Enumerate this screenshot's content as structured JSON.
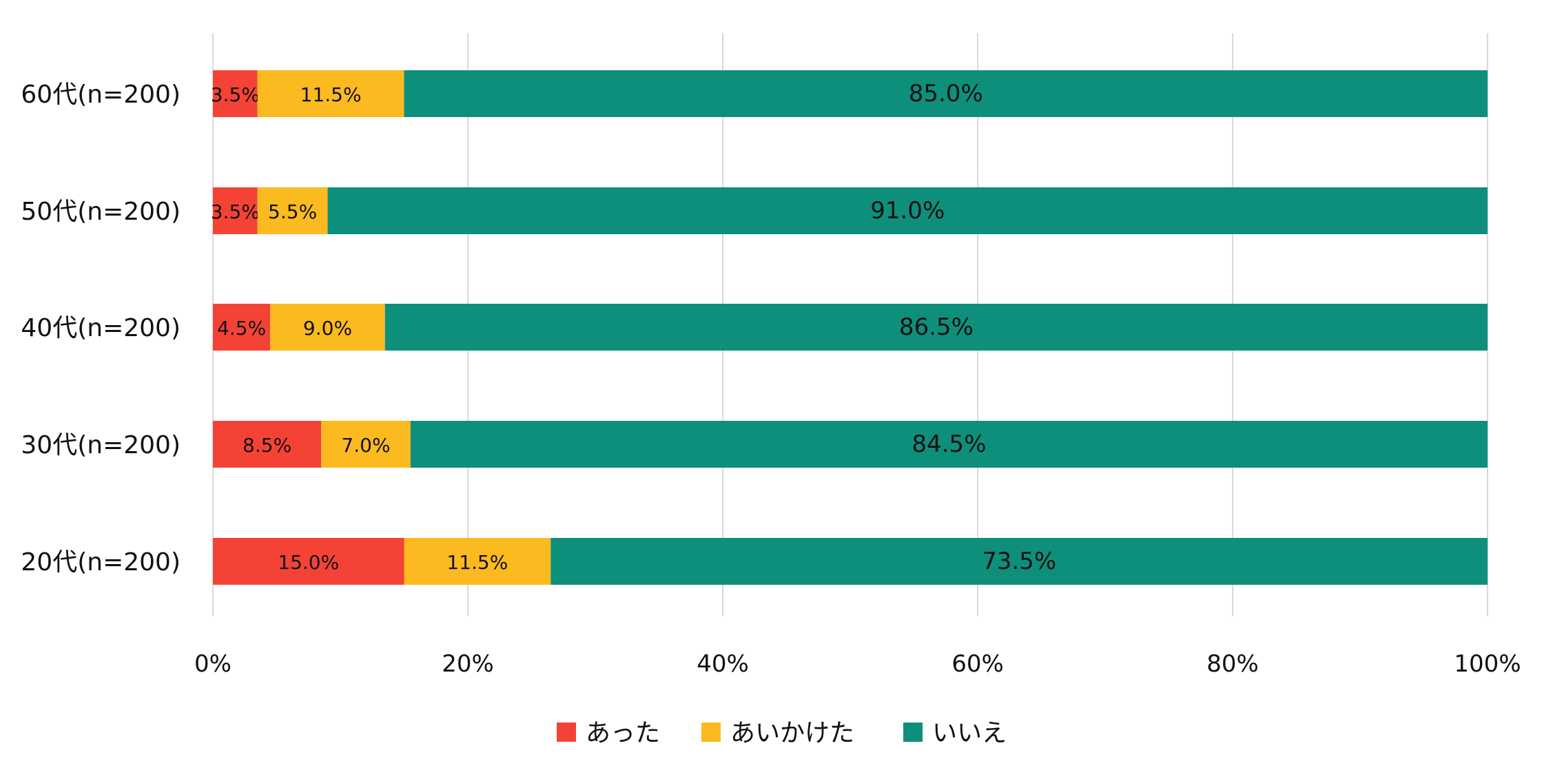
{
  "chart_data": {
    "type": "bar",
    "orientation": "horizontal",
    "stacked": "percent",
    "categories": [
      "60代(n=200)",
      "50代(n=200)",
      "40代(n=200)",
      "30代(n=200)",
      "20代(n=200)"
    ],
    "series": [
      {
        "name": "あった",
        "color": "#f44336",
        "values": [
          3.5,
          3.5,
          4.5,
          8.5,
          15.0
        ],
        "labels": [
          "3.5%",
          "3.5%",
          "4.5%",
          "8.5%",
          "15.0%"
        ]
      },
      {
        "name": "あいかけた",
        "color": "#fbba20",
        "values": [
          11.5,
          5.5,
          9.0,
          7.0,
          11.5
        ],
        "labels": [
          "11.5%",
          "5.5%",
          "9.0%",
          "7.0%",
          "11.5%"
        ]
      },
      {
        "name": "いいえ",
        "color": "#0e8f7c",
        "values": [
          85.0,
          91.0,
          86.5,
          84.5,
          73.5
        ],
        "labels": [
          "85.0%",
          "91.0%",
          "86.5%",
          "84.5%",
          "73.5%"
        ]
      }
    ],
    "xlim": [
      0,
      100
    ],
    "x_ticks": [
      "0%",
      "20%",
      "40%",
      "60%",
      "80%",
      "100%"
    ],
    "grid": true,
    "legend_position": "bottom"
  }
}
